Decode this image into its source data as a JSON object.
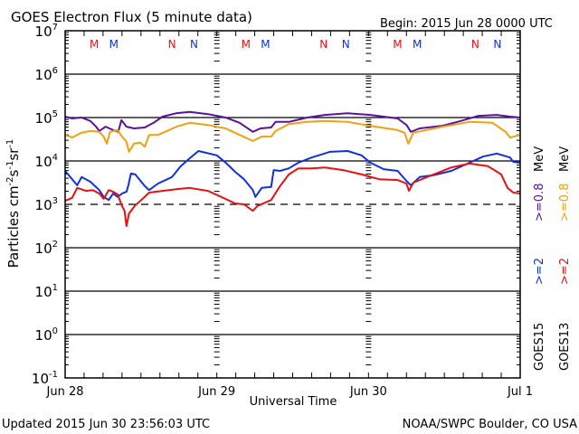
{
  "header": {
    "title": "GOES Electron Flux (5 minute data)",
    "begin": "Begin: 2015 Jun 28 0000 UTC"
  },
  "footer": {
    "updated": "Updated 2015 Jun 30 23:56:03 UTC",
    "credit": "NOAA/SWPC Boulder, CO USA"
  },
  "colors": {
    "goes15_2mev": "#1030e0",
    "goes15_08mev": "#5a10a0",
    "goes13_2mev": "#e81010",
    "goes13_08mev": "#f0a010",
    "mn_red": "#e81010",
    "mn_blue": "#1030e0"
  },
  "chart_data": {
    "type": "line",
    "title": "GOES Electron Flux (5 minute data)",
    "xlabel": "Universal Time",
    "ylabel": "Particles cm-2 s-1 sr-1",
    "ylabel_parts": {
      "base": "Particles cm",
      "e1": "-2",
      "s": "s",
      "e2": "-1",
      "sr": "sr",
      "e3": "-1"
    },
    "yscale": "log",
    "ylim": [
      0.1,
      10000000
    ],
    "xlim_hours": [
      0,
      72
    ],
    "x_ticks": [
      {
        "hour": 0,
        "label": "Jun 28"
      },
      {
        "hour": 24,
        "label": "Jun 29"
      },
      {
        "hour": 48,
        "label": "Jun 30"
      },
      {
        "hour": 72,
        "label": "Jul 1"
      }
    ],
    "y_ticks": [
      {
        "exp": 7,
        "base": "10",
        "sup": "7"
      },
      {
        "exp": 6,
        "base": "10",
        "sup": "6"
      },
      {
        "exp": 5,
        "base": "10",
        "sup": "5"
      },
      {
        "exp": 4,
        "base": "10",
        "sup": "4"
      },
      {
        "exp": 3,
        "base": "10",
        "sup": "3"
      },
      {
        "exp": 2,
        "base": "10",
        "sup": "2"
      },
      {
        "exp": 1,
        "base": "10",
        "sup": "1"
      },
      {
        "exp": 0,
        "base": "10",
        "sup": "0"
      },
      {
        "exp": -1,
        "base": "10",
        "sup": "-1"
      }
    ],
    "grid_solid_exps": [
      6,
      5,
      4,
      2,
      1,
      0
    ],
    "threshold_dashed_exp": 3,
    "mn_markers": [
      {
        "hour": 4.6,
        "label": "M",
        "color": "red"
      },
      {
        "hour": 7.7,
        "label": "M",
        "color": "blue"
      },
      {
        "hour": 16.9,
        "label": "N",
        "color": "red"
      },
      {
        "hour": 20.4,
        "label": "N",
        "color": "blue"
      },
      {
        "hour": 28.6,
        "label": "M",
        "color": "red"
      },
      {
        "hour": 31.7,
        "label": "M",
        "color": "blue"
      },
      {
        "hour": 40.9,
        "label": "N",
        "color": "red"
      },
      {
        "hour": 44.4,
        "label": "N",
        "color": "blue"
      },
      {
        "hour": 52.6,
        "label": "M",
        "color": "red"
      },
      {
        "hour": 55.7,
        "label": "M",
        "color": "blue"
      },
      {
        "hour": 64.9,
        "label": "N",
        "color": "red"
      },
      {
        "hour": 68.4,
        "label": "N",
        "color": "blue"
      }
    ],
    "legend": {
      "placement": "right",
      "groups": [
        {
          "sat": "GOES15",
          "entries": [
            {
              "label": ">=2",
              "color": "goes15_2mev"
            },
            {
              "label": ">=0.8",
              "color": "goes15_08mev"
            }
          ],
          "unit": "MeV"
        },
        {
          "sat": "GOES13",
          "entries": [
            {
              "label": ">=2",
              "color": "goes13_2mev"
            },
            {
              "label": ">=0.8",
              "color": "goes13_08mev"
            }
          ],
          "unit": "MeV"
        }
      ]
    },
    "series": [
      {
        "name": "GOES15 >=0.8 MeV",
        "color": "goes15_08mev",
        "hours": [
          0,
          1.1,
          2.6,
          4.0,
          4.9,
          5.4,
          6.4,
          7.6,
          8.4,
          8.9,
          9.7,
          10.9,
          12.6,
          14.0,
          15.4,
          17.6,
          19.7,
          22.6,
          25.4,
          27.6,
          29.7,
          30.9,
          32.6,
          33.3,
          35.4,
          38.3,
          41.1,
          44.7,
          48.3,
          52.6,
          54.0,
          54.7,
          56.1,
          59.7,
          62.6,
          65.4,
          68.3,
          70.4,
          72
        ],
        "log10_flux": [
          5.02,
          4.98,
          5.0,
          4.92,
          4.79,
          4.69,
          4.79,
          4.71,
          4.67,
          4.94,
          4.79,
          4.75,
          4.77,
          4.88,
          5.02,
          5.1,
          5.13,
          5.08,
          5.0,
          4.88,
          4.67,
          4.75,
          4.77,
          4.9,
          4.9,
          5.0,
          5.06,
          5.1,
          5.06,
          4.98,
          4.83,
          4.67,
          4.75,
          4.81,
          4.92,
          5.04,
          5.06,
          5.02,
          5.0
        ]
      },
      {
        "name": "GOES13 >=0.8 MeV",
        "color": "goes13_08mev",
        "hours": [
          0,
          1.1,
          2.6,
          4.0,
          5.4,
          6.1,
          6.6,
          7.1,
          8.3,
          9.0,
          9.7,
          10.1,
          10.9,
          11.9,
          12.6,
          13.3,
          14.7,
          16.1,
          17.6,
          19.7,
          22.6,
          25.4,
          27.6,
          29.7,
          31.1,
          32.6,
          33.3,
          35.4,
          38.3,
          41.1,
          44.7,
          48.3,
          52.6,
          53.7,
          54.3,
          55.1,
          59.7,
          64.0,
          67.6,
          69.7,
          70.4,
          72
        ],
        "log10_flux": [
          4.6,
          4.54,
          4.65,
          4.69,
          4.67,
          4.56,
          4.4,
          4.67,
          4.71,
          4.56,
          4.44,
          4.21,
          4.4,
          4.42,
          4.33,
          4.6,
          4.6,
          4.69,
          4.79,
          4.88,
          4.83,
          4.75,
          4.6,
          4.46,
          4.56,
          4.56,
          4.69,
          4.85,
          4.9,
          4.92,
          4.9,
          4.81,
          4.71,
          4.65,
          4.4,
          4.65,
          4.79,
          4.9,
          4.88,
          4.67,
          4.54,
          4.6
        ]
      },
      {
        "name": "GOES15 >=2 MeV",
        "color": "goes15_2mev",
        "hours": [
          0,
          1.1,
          1.9,
          2.6,
          4.0,
          5.4,
          6.1,
          6.9,
          7.6,
          8.3,
          9.0,
          9.7,
          10.0,
          10.4,
          11.1,
          12.6,
          13.3,
          14.7,
          16.9,
          18.3,
          19.7,
          21.1,
          24.0,
          25.4,
          26.9,
          28.3,
          29.7,
          30.1,
          31.1,
          32.6,
          33.0,
          34.0,
          35.4,
          36.9,
          39.0,
          41.9,
          44.7,
          46.9,
          48.3,
          50.4,
          52.6,
          54.0,
          54.7,
          56.1,
          58.3,
          61.1,
          64.0,
          66.1,
          68.3,
          70.4,
          70.9,
          72
        ],
        "log10_flux": [
          3.77,
          3.58,
          3.44,
          3.63,
          3.52,
          3.33,
          3.17,
          3.1,
          3.25,
          3.17,
          3.25,
          3.29,
          3.44,
          3.71,
          3.69,
          3.42,
          3.33,
          3.48,
          3.63,
          3.88,
          4.06,
          4.23,
          4.13,
          3.96,
          3.75,
          3.58,
          3.33,
          3.17,
          3.38,
          3.4,
          3.79,
          3.77,
          3.83,
          3.96,
          4.08,
          4.21,
          4.23,
          4.13,
          3.96,
          3.81,
          3.77,
          3.54,
          3.44,
          3.63,
          3.67,
          3.77,
          3.96,
          4.1,
          4.17,
          4.08,
          3.98,
          3.96
        ]
      },
      {
        "name": "GOES13 >=2 MeV",
        "color": "goes13_2mev",
        "hours": [
          0,
          1.1,
          1.9,
          3.3,
          4.4,
          5.4,
          6.1,
          6.9,
          7.6,
          8.3,
          9.0,
          9.4,
          9.7,
          10.1,
          11.1,
          11.9,
          13.3,
          15.4,
          17.6,
          19.7,
          22.6,
          24.7,
          26.9,
          28.3,
          29.7,
          30.4,
          32.6,
          34.0,
          35.4,
          36.9,
          39.0,
          41.1,
          44.0,
          46.9,
          49.7,
          52.6,
          54.0,
          54.4,
          55.1,
          58.3,
          61.1,
          64.0,
          66.9,
          69.0,
          70.0,
          70.9,
          72
        ],
        "log10_flux": [
          3.08,
          3.15,
          3.38,
          3.31,
          3.33,
          3.25,
          3.13,
          3.33,
          3.29,
          3.23,
          2.96,
          2.85,
          2.5,
          2.79,
          2.98,
          3.08,
          3.27,
          3.31,
          3.35,
          3.38,
          3.31,
          3.17,
          3.02,
          3.0,
          2.85,
          2.96,
          3.1,
          3.42,
          3.69,
          3.83,
          3.83,
          3.85,
          3.79,
          3.69,
          3.58,
          3.56,
          3.48,
          3.31,
          3.5,
          3.69,
          3.85,
          3.94,
          3.88,
          3.69,
          3.38,
          3.27,
          3.25
        ]
      }
    ]
  }
}
